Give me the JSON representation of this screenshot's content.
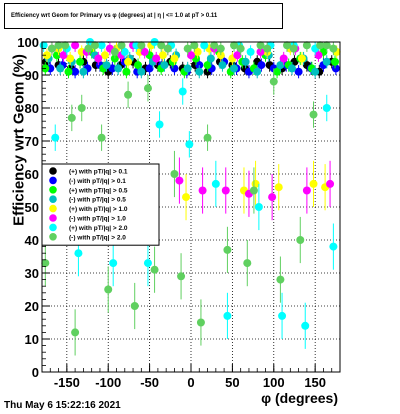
{
  "chart_data": {
    "type": "scatter",
    "title": "Efficiency wrt Geom for Primary vs φ (degrees) at | η | <= 1.0 at pT > 0.11",
    "xlabel": "φ (degrees)",
    "ylabel": "Efficiency wrt Geom (%)",
    "xlim": [
      -180,
      180
    ],
    "ylim": [
      0,
      100
    ],
    "xticks": [
      -150,
      -100,
      -50,
      0,
      50,
      100,
      150
    ],
    "yticks": [
      0,
      10,
      20,
      30,
      40,
      50,
      60,
      70,
      80,
      90,
      100
    ],
    "grid": true,
    "legend_position": "left-middle",
    "series": [
      {
        "name": "(+) with pT/|q| > 0.1",
        "color": "#000000",
        "x": [
          -175,
          -160,
          -145,
          -130,
          -115,
          -100,
          -85,
          -70,
          -55,
          -40,
          -25,
          -10,
          5,
          20,
          35,
          50,
          65,
          80,
          95,
          110,
          125,
          140,
          155,
          170
        ],
        "y": [
          94,
          93,
          92,
          94,
          93,
          91,
          93,
          94,
          92,
          93,
          94,
          92,
          93,
          91,
          94,
          93,
          92,
          94,
          93,
          92,
          94,
          93,
          91,
          94
        ]
      },
      {
        "name": "(-) with pT/|q| > 0.1",
        "color": "#0000ff",
        "x": [
          -170,
          -155,
          -140,
          -125,
          -110,
          -95,
          -80,
          -65,
          -50,
          -35,
          -20,
          -5,
          10,
          25,
          40,
          55,
          70,
          85,
          100,
          115,
          130,
          145,
          160,
          175
        ],
        "y": [
          92,
          93,
          91,
          92,
          93,
          92,
          94,
          91,
          92,
          93,
          92,
          91,
          93,
          92,
          94,
          92,
          91,
          93,
          92,
          93,
          91,
          92,
          93,
          92
        ]
      },
      {
        "name": "(+) with pT/|q| > 0.5",
        "color": "#00ff00",
        "x": [
          -176,
          -162,
          -148,
          -134,
          -120,
          -106,
          -92,
          -78,
          -64,
          -50,
          -36,
          -22,
          -8,
          6,
          20,
          34,
          48,
          62,
          76,
          90,
          104,
          118,
          132,
          146,
          160,
          174
        ],
        "y": [
          92,
          96,
          91,
          94,
          97,
          92,
          95,
          91,
          93,
          96,
          92,
          94,
          91,
          95,
          93,
          97,
          91,
          94,
          92,
          96,
          91,
          93,
          95,
          92,
          97,
          94
        ]
      },
      {
        "name": "(-) with pT/|q| > 0.5",
        "color": "#00c0c0",
        "x": [
          -172,
          -158,
          -144,
          -130,
          -116,
          -102,
          -88,
          -74,
          -60,
          -46,
          -32,
          -18,
          -4,
          10,
          24,
          38,
          52,
          66,
          80,
          94,
          108,
          122,
          136,
          150,
          164
        ],
        "y": [
          95,
          92,
          94,
          91,
          96,
          93,
          92,
          95,
          91,
          94,
          93,
          96,
          92,
          91,
          95,
          93,
          92,
          94,
          91,
          96,
          93,
          92,
          95,
          91,
          94
        ]
      },
      {
        "name": "(+) with pT/|q| > 1.0",
        "color": "#ffff00",
        "x": [
          -174,
          -160,
          -146,
          -132,
          -118,
          -104,
          -90,
          -76,
          -62,
          -48,
          -34,
          -20,
          -6,
          8,
          22,
          36,
          50,
          64,
          78,
          92,
          106,
          120,
          134,
          148,
          162,
          176
        ],
        "y": [
          96,
          98,
          95,
          97,
          99,
          96,
          98,
          94,
          97,
          99,
          96,
          95,
          53,
          97,
          98,
          96,
          95,
          55,
          57,
          97,
          56,
          98,
          95,
          57,
          56,
          97
        ]
      },
      {
        "name": "(-) with pT/|q| > 1.0",
        "color": "#ff00ff",
        "x": [
          -168,
          -154,
          -140,
          -126,
          -112,
          -98,
          -84,
          -70,
          -56,
          -42,
          -28,
          -14,
          0,
          14,
          28,
          42,
          56,
          70,
          84,
          98,
          112,
          126,
          140,
          154,
          168
        ],
        "y": [
          98,
          96,
          99,
          97,
          95,
          98,
          96,
          99,
          97,
          95,
          98,
          58,
          96,
          55,
          98,
          55,
          96,
          54,
          97,
          53,
          95,
          98,
          55,
          96,
          57
        ]
      },
      {
        "name": "(+) with pT/|q| > 2.0",
        "color": "#00ffff",
        "x": [
          -178,
          -164,
          -150,
          -136,
          -122,
          -108,
          -94,
          -80,
          -66,
          -52,
          -44,
          -38,
          -24,
          -10,
          -2,
          16,
          30,
          44,
          58,
          72,
          82,
          96,
          110,
          124,
          138,
          150,
          164,
          172
        ],
        "y": [
          99,
          71,
          98,
          36,
          100,
          99,
          33,
          97,
          99,
          33,
          100,
          75,
          99,
          85,
          69,
          99,
          57,
          17,
          99,
          97,
          50,
          99,
          17,
          99,
          14,
          98,
          80,
          38
        ]
      },
      {
        "name": "(-) with pT/|q| > 2.0",
        "color": "#60d060",
        "x": [
          -176,
          -168,
          -160,
          -152,
          -144,
          -140,
          -132,
          -124,
          -116,
          -108,
          -100,
          -92,
          -84,
          -76,
          -68,
          -60,
          -52,
          -44,
          -36,
          -28,
          -20,
          -12,
          -4,
          4,
          12,
          20,
          28,
          36,
          44,
          52,
          60,
          68,
          76,
          84,
          92,
          100,
          108,
          116,
          124,
          132,
          140,
          148,
          156,
          164,
          172
        ],
        "y": [
          33,
          98,
          99,
          99,
          77,
          12,
          80,
          98,
          99,
          71,
          25,
          97,
          99,
          84,
          20,
          99,
          86,
          31,
          99,
          98,
          60,
          29,
          98,
          99,
          15,
          71,
          99,
          98,
          37,
          99,
          98,
          33,
          55,
          99,
          98,
          88,
          28,
          99,
          98,
          40,
          99,
          78,
          99,
          99,
          98
        ]
      }
    ]
  },
  "footer_timestamp": "Thu May  6 15:22:16 2021"
}
